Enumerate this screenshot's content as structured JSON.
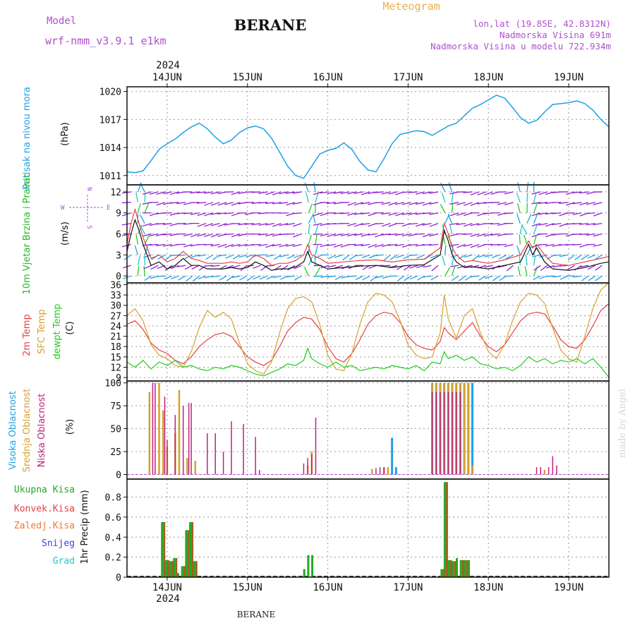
{
  "header": {
    "model_label": "Model",
    "model_name": "wrf-nmm_v3.9.1 e1km",
    "title": "BERANE",
    "meteogram_label": "Meteogram",
    "lonlat": "lon,lat (19.85E, 42.8312N)",
    "altitude": "Nadmorska Visina 691m",
    "model_altitude": "Nadmorska Visina u modelu 722.934m"
  },
  "footer": {
    "station": "BERANE",
    "year": "2024",
    "credit": "made by Angel"
  },
  "colors": {
    "pressure": "#1ea0e6",
    "wind_label": "#22bb22",
    "temp2m": "#e84040",
    "sfc_temp": "#d8a030",
    "dewpt": "#22cc22",
    "high_cloud": "#1ea0e6",
    "mid_cloud": "#d8a030",
    "low_cloud": "#c02080",
    "total_precip": "#22aa22",
    "conv_precip": "#e84040",
    "frz_precip": "#f07830",
    "snow": "#4040e0",
    "hail": "#20c8c8",
    "header_purple": "#b050d0",
    "header_orange": "#e8b050"
  },
  "chart_data": [
    {
      "type": "line",
      "id": "pressure",
      "ylabel_name": "Pritisak na nivou mora",
      "ylabel_unit": "(hPa)",
      "x_range": [
        13.5,
        19.5
      ],
      "x_ticks": [
        "14JUN",
        "15JUN",
        "16JUN",
        "17JUN",
        "18JUN",
        "19JUN"
      ],
      "ylim": [
        1010,
        1020.5
      ],
      "yticks": [
        "1011",
        "1014",
        "1017",
        "1020"
      ],
      "grid": true,
      "x": [
        13.5,
        13.6,
        13.7,
        13.8,
        13.9,
        14.0,
        14.1,
        14.2,
        14.3,
        14.4,
        14.5,
        14.6,
        14.7,
        14.8,
        14.9,
        15.0,
        15.1,
        15.2,
        15.3,
        15.4,
        15.5,
        15.6,
        15.7,
        15.8,
        15.9,
        16.0,
        16.1,
        16.2,
        16.3,
        16.4,
        16.5,
        16.6,
        16.7,
        16.8,
        16.9,
        17.0,
        17.1,
        17.2,
        17.3,
        17.4,
        17.5,
        17.6,
        17.7,
        17.8,
        17.9,
        18.0,
        18.1,
        18.2,
        18.3,
        18.4,
        18.5,
        18.6,
        18.7,
        18.8,
        18.9,
        19.0,
        19.1,
        19.2,
        19.3,
        19.4,
        19.5
      ],
      "values": [
        1011.4,
        1011.3,
        1011.5,
        1012.6,
        1013.8,
        1014.4,
        1014.9,
        1015.6,
        1016.2,
        1016.6,
        1016.0,
        1015.1,
        1014.4,
        1014.8,
        1015.6,
        1016.1,
        1016.3,
        1016.0,
        1015.0,
        1013.5,
        1012.0,
        1011.0,
        1010.7,
        1012.0,
        1013.3,
        1013.7,
        1013.9,
        1014.5,
        1013.8,
        1012.5,
        1011.6,
        1011.4,
        1012.8,
        1014.4,
        1015.4,
        1015.6,
        1015.8,
        1015.7,
        1015.3,
        1015.8,
        1016.3,
        1016.6,
        1017.4,
        1018.2,
        1018.6,
        1019.1,
        1019.6,
        1019.3,
        1018.3,
        1017.2,
        1016.6,
        1016.9,
        1017.8,
        1018.6,
        1018.7,
        1018.8,
        1019.0,
        1018.7,
        1018.0,
        1017.0,
        1016.2
      ],
      "series_name": ""
    },
    {
      "type": "line",
      "id": "wind",
      "ylabel_name": "10m Vjetar Brzina i Pravac",
      "ylabel_unit": "(m/s)",
      "compass_labels": [
        "N",
        "E",
        "S",
        "W"
      ],
      "ylim": [
        -1,
        13
      ],
      "yticks": [
        "0",
        "3",
        "6",
        "9",
        "12"
      ],
      "grid": true,
      "speed_x": [
        13.5,
        13.55,
        13.6,
        13.65,
        13.7,
        13.8,
        13.9,
        14.0,
        14.1,
        14.2,
        14.3,
        14.4,
        14.5,
        14.6,
        14.7,
        14.8,
        14.9,
        15.0,
        15.1,
        15.2,
        15.3,
        15.4,
        15.5,
        15.6,
        15.7,
        15.75,
        15.8,
        15.9,
        16.0,
        16.2,
        16.4,
        16.6,
        16.8,
        17.0,
        17.2,
        17.4,
        17.45,
        17.5,
        17.55,
        17.6,
        17.7,
        17.8,
        18.0,
        18.2,
        18.4,
        18.5,
        18.55,
        18.6,
        18.7,
        18.8,
        19.0,
        19.2,
        19.4,
        19.5
      ],
      "speed_values": [
        3.5,
        6.0,
        8.0,
        6.5,
        4.5,
        1.5,
        2.0,
        1.0,
        1.5,
        2.5,
        1.5,
        1.5,
        1.0,
        1.0,
        1.0,
        1.2,
        1.0,
        1.2,
        2.0,
        1.5,
        0.8,
        1.0,
        1.0,
        1.3,
        2.0,
        3.5,
        2.0,
        1.5,
        1.0,
        1.2,
        1.4,
        1.5,
        1.2,
        1.5,
        1.6,
        3.0,
        6.5,
        5.0,
        3.0,
        2.0,
        1.2,
        1.3,
        1.0,
        1.5,
        2.0,
        4.5,
        3.0,
        4.0,
        2.0,
        1.0,
        0.8,
        1.2,
        1.8,
        2.0
      ],
      "gust_x": [
        13.5,
        13.55,
        13.6,
        13.65,
        13.7,
        13.8,
        13.9,
        14.0,
        14.1,
        14.2,
        14.3,
        14.4,
        14.5,
        14.6,
        14.7,
        14.8,
        14.9,
        15.0,
        15.1,
        15.2,
        15.3,
        15.4,
        15.5,
        15.6,
        15.7,
        15.75,
        15.8,
        15.9,
        16.0,
        16.2,
        16.4,
        16.6,
        16.8,
        17.0,
        17.2,
        17.4,
        17.45,
        17.5,
        17.55,
        17.6,
        17.7,
        17.8,
        18.0,
        18.2,
        18.4,
        18.5,
        18.55,
        18.6,
        18.7,
        18.8,
        19.0,
        19.2,
        19.4,
        19.5
      ],
      "gust_values": [
        4.5,
        7.5,
        9.5,
        7.5,
        5.5,
        2.5,
        3.0,
        2.0,
        2.5,
        3.5,
        2.5,
        2.2,
        1.8,
        1.8,
        1.8,
        2.0,
        1.8,
        2.0,
        3.0,
        2.5,
        1.5,
        1.8,
        1.8,
        2.2,
        3.0,
        4.5,
        3.0,
        2.5,
        1.8,
        2.0,
        2.2,
        2.3,
        2.0,
        2.3,
        2.4,
        4.0,
        7.5,
        6.0,
        4.0,
        3.0,
        2.0,
        2.2,
        1.8,
        2.3,
        3.0,
        5.0,
        4.0,
        4.5,
        3.0,
        1.8,
        1.5,
        2.0,
        2.5,
        2.8
      ]
    },
    {
      "type": "line",
      "id": "temperature",
      "ylabel_lines": [
        "2m Temp",
        "SFC Temp",
        "dewpt Temp"
      ],
      "ylabel_unit": "(C)",
      "ylim": [
        8,
        36.5
      ],
      "yticks": [
        "9",
        "12",
        "15",
        "18",
        "21",
        "24",
        "27",
        "30",
        "33",
        "36"
      ],
      "grid": true,
      "series": [
        {
          "name": "2m Temp",
          "x": [
            13.5,
            13.6,
            13.7,
            13.8,
            13.9,
            14.0,
            14.1,
            14.2,
            14.3,
            14.4,
            14.5,
            14.6,
            14.7,
            14.8,
            14.9,
            15.0,
            15.1,
            15.2,
            15.3,
            15.4,
            15.5,
            15.6,
            15.7,
            15.8,
            15.9,
            16.0,
            16.1,
            16.2,
            16.3,
            16.4,
            16.5,
            16.6,
            16.7,
            16.8,
            16.9,
            17.0,
            17.1,
            17.2,
            17.3,
            17.4,
            17.45,
            17.5,
            17.6,
            17.7,
            17.8,
            17.9,
            18.0,
            18.1,
            18.2,
            18.3,
            18.4,
            18.5,
            18.6,
            18.7,
            18.8,
            18.9,
            19.0,
            19.1,
            19.2,
            19.3,
            19.4,
            19.5
          ],
          "values": [
            24.5,
            25.5,
            23.0,
            19.0,
            17.0,
            16.0,
            14.0,
            13.0,
            15.0,
            18.0,
            20.0,
            21.5,
            22.0,
            21.0,
            18.0,
            15.0,
            13.5,
            12.5,
            14.0,
            18.0,
            22.5,
            25.0,
            26.5,
            26.0,
            23.0,
            18.0,
            14.5,
            13.5,
            16.0,
            20.0,
            24.5,
            27.0,
            28.0,
            27.5,
            25.0,
            21.0,
            18.5,
            17.5,
            17.0,
            19.5,
            23.5,
            22.0,
            20.0,
            22.5,
            25.0,
            21.0,
            18.0,
            16.5,
            18.5,
            22.0,
            25.5,
            27.5,
            28.0,
            27.5,
            24.0,
            20.0,
            18.0,
            17.5,
            20.0,
            24.0,
            28.5,
            30.5
          ]
        },
        {
          "name": "SFC Temp",
          "x": [
            13.5,
            13.6,
            13.7,
            13.8,
            13.9,
            14.0,
            14.1,
            14.2,
            14.3,
            14.4,
            14.5,
            14.6,
            14.7,
            14.8,
            14.9,
            15.0,
            15.1,
            15.2,
            15.3,
            15.4,
            15.5,
            15.6,
            15.7,
            15.8,
            15.9,
            16.0,
            16.1,
            16.2,
            16.3,
            16.4,
            16.5,
            16.6,
            16.7,
            16.8,
            16.9,
            17.0,
            17.1,
            17.2,
            17.3,
            17.4,
            17.45,
            17.5,
            17.6,
            17.7,
            17.8,
            17.9,
            18.0,
            18.1,
            18.2,
            18.3,
            18.4,
            18.5,
            18.6,
            18.7,
            18.8,
            18.9,
            19.0,
            19.1,
            19.2,
            19.3,
            19.4,
            19.5
          ],
          "values": [
            27.0,
            29.0,
            25.5,
            18.5,
            15.5,
            14.5,
            12.5,
            12.0,
            16.5,
            23.5,
            28.5,
            26.5,
            28.0,
            26.0,
            19.0,
            13.0,
            11.0,
            10.0,
            13.5,
            22.0,
            29.0,
            32.0,
            32.5,
            31.0,
            24.5,
            15.5,
            11.5,
            11.0,
            16.0,
            24.5,
            31.0,
            33.5,
            33.0,
            31.0,
            25.5,
            18.5,
            15.5,
            14.5,
            15.0,
            22.0,
            33.0,
            26.0,
            20.5,
            27.0,
            29.0,
            22.0,
            16.5,
            14.5,
            18.5,
            25.5,
            31.0,
            33.5,
            33.0,
            30.5,
            23.5,
            17.0,
            14.5,
            13.5,
            21.0,
            29.0,
            34.5,
            36.5
          ]
        },
        {
          "name": "dewpt Temp",
          "x": [
            13.5,
            13.6,
            13.7,
            13.8,
            13.9,
            14.0,
            14.1,
            14.2,
            14.3,
            14.4,
            14.5,
            14.6,
            14.7,
            14.8,
            14.9,
            15.0,
            15.1,
            15.2,
            15.3,
            15.4,
            15.5,
            15.6,
            15.7,
            15.75,
            15.8,
            15.9,
            16.0,
            16.1,
            16.2,
            16.3,
            16.4,
            16.5,
            16.6,
            16.7,
            16.8,
            16.9,
            17.0,
            17.1,
            17.2,
            17.3,
            17.4,
            17.45,
            17.5,
            17.6,
            17.7,
            17.8,
            17.9,
            18.0,
            18.1,
            18.2,
            18.3,
            18.4,
            18.5,
            18.6,
            18.7,
            18.8,
            18.9,
            19.0,
            19.1,
            19.2,
            19.3,
            19.4,
            19.5
          ],
          "values": [
            13.5,
            12.0,
            14.0,
            11.5,
            13.5,
            12.5,
            14.0,
            12.0,
            12.5,
            11.5,
            11.0,
            12.0,
            11.5,
            12.5,
            12.0,
            11.0,
            10.0,
            9.5,
            10.5,
            11.5,
            13.0,
            12.5,
            14.0,
            17.5,
            14.5,
            13.0,
            12.0,
            13.5,
            12.0,
            12.5,
            11.0,
            11.5,
            12.0,
            11.5,
            12.5,
            12.0,
            11.5,
            12.5,
            11.0,
            13.5,
            13.0,
            16.5,
            14.5,
            15.5,
            14.0,
            15.0,
            13.0,
            12.5,
            11.5,
            12.0,
            11.0,
            12.5,
            15.0,
            13.5,
            14.5,
            13.0,
            14.0,
            13.5,
            14.5,
            13.0,
            14.5,
            12.0,
            9.0
          ]
        }
      ]
    },
    {
      "type": "bar",
      "id": "clouds",
      "ylabel_lines": [
        "Visoka Oblacnost",
        "Srednja Oblacnost",
        "Niska Oblacnost"
      ],
      "ylabel_unit": "(%)",
      "ylim": [
        -5,
        102
      ],
      "yticks": [
        "0",
        "25",
        "50",
        "75",
        "100"
      ],
      "grid": true,
      "series": [
        {
          "name": "Visoka Oblacnost",
          "x": [
            13.55,
            13.7,
            13.9,
            14.05,
            16.8,
            16.85,
            17.3,
            17.35,
            17.4,
            17.45,
            17.5,
            17.55,
            17.6,
            17.65,
            17.7,
            17.75,
            17.8
          ],
          "values": [
            0,
            0,
            0,
            0,
            40,
            8,
            100,
            100,
            100,
            100,
            100,
            100,
            100,
            100,
            100,
            100,
            100
          ]
        },
        {
          "name": "Srednja Oblacnost",
          "x": [
            13.78,
            13.9,
            13.95,
            14.0,
            14.1,
            14.15,
            14.25,
            14.35,
            15.75,
            15.8,
            16.55,
            16.7,
            16.75,
            17.3,
            17.35,
            17.4,
            17.45,
            17.5,
            17.55,
            17.6,
            17.65,
            17.7,
            17.75,
            17.8,
            18.7
          ],
          "values": [
            90,
            100,
            70,
            30,
            45,
            92,
            18,
            15,
            10,
            25,
            6,
            8,
            8,
            100,
            100,
            100,
            100,
            100,
            100,
            100,
            100,
            100,
            100,
            10,
            5
          ]
        },
        {
          "name": "Niska Oblacnost",
          "x": [
            13.82,
            13.85,
            13.97,
            14.0,
            14.1,
            14.2,
            14.27,
            14.3,
            14.5,
            14.6,
            14.7,
            14.8,
            14.95,
            15.1,
            15.15,
            15.7,
            15.75,
            15.8,
            15.85,
            16.6,
            16.65,
            16.7,
            17.3,
            17.35,
            17.4,
            17.45,
            17.5,
            17.55,
            17.6,
            17.65,
            18.6,
            18.65,
            18.75,
            18.8,
            18.85
          ],
          "values": [
            100,
            100,
            85,
            38,
            65,
            75,
            78,
            78,
            45,
            45,
            25,
            58,
            55,
            41,
            5,
            12,
            18,
            22,
            62,
            7,
            8,
            8,
            90,
            90,
            90,
            90,
            90,
            90,
            90,
            90,
            8,
            8,
            8,
            20,
            10
          ]
        }
      ]
    },
    {
      "type": "bar",
      "id": "precip",
      "ylabel_name": "1hr Precip (mm)",
      "legend": [
        "Ukupna Kisa",
        "Konvek.Kisa",
        "Zaledj.Kisa",
        "Snijeg",
        "Grad"
      ],
      "ylim": [
        0,
        0.98
      ],
      "yticks": [
        "0",
        "0.2",
        "0.4",
        "0.6",
        "0.8"
      ],
      "grid": true,
      "series": [
        {
          "name": "Ukupna Kisa",
          "x": [
            13.95,
            14.0,
            14.05,
            14.1,
            14.15,
            14.2,
            14.25,
            14.3,
            14.35,
            15.72,
            15.77,
            15.82,
            17.43,
            17.47,
            17.52,
            17.57,
            17.62,
            17.67,
            17.72,
            17.77
          ],
          "values": [
            0.55,
            0.17,
            0.16,
            0.19,
            0.04,
            0.11,
            0.47,
            0.55,
            0.16,
            0.08,
            0.22,
            0.22,
            0.08,
            0.95,
            0.17,
            0.16,
            0.19,
            0.17,
            0.17,
            0.17
          ]
        },
        {
          "name": "Konvek.Kisa",
          "x": [
            13.95,
            14.0,
            14.05,
            14.1,
            14.2,
            14.25,
            14.3,
            14.35,
            17.43,
            17.47,
            17.52,
            17.57,
            17.67,
            17.72
          ],
          "values": [
            0.55,
            0.17,
            0.16,
            0.19,
            0.11,
            0.47,
            0.55,
            0.16,
            0.08,
            0.95,
            0.17,
            0.16,
            0.17,
            0.17
          ]
        }
      ]
    }
  ]
}
